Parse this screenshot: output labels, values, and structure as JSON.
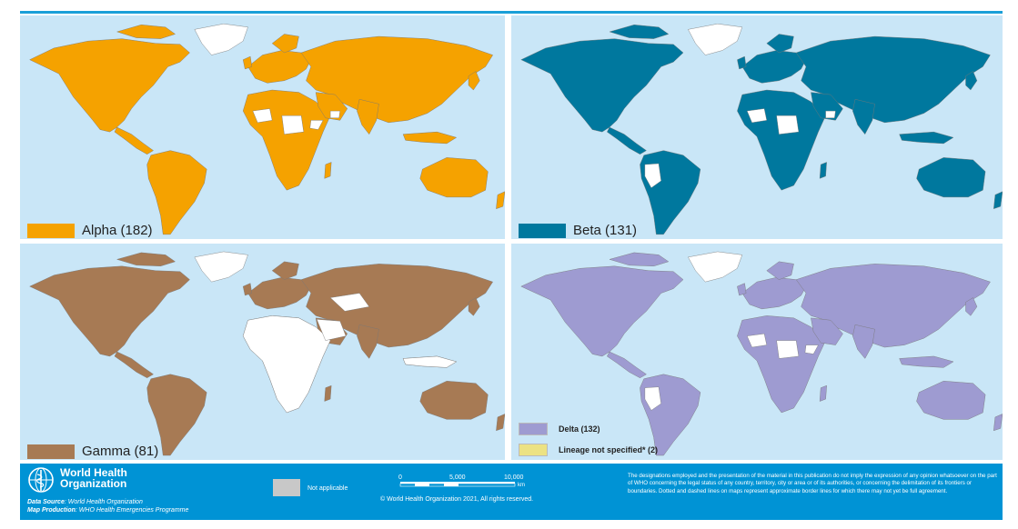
{
  "maps": [
    {
      "id": "alpha",
      "label": "Alpha (182)",
      "color": "#f5a200",
      "uncolored": [
        "west-africa",
        "central-africa",
        "horn",
        "arabia-south"
      ]
    },
    {
      "id": "beta",
      "label": "Beta (131)",
      "color": "#00789e",
      "uncolored": [
        "south-america-west",
        "west-africa",
        "central-africa",
        "arabia-south"
      ]
    },
    {
      "id": "gamma",
      "label": "Gamma (81)",
      "color": "#a77a54",
      "uncolored": [
        "africa",
        "arabia",
        "central-asia",
        "indonesia"
      ]
    },
    {
      "id": "delta",
      "colors": [
        "#9e9bd1",
        "#ece283"
      ],
      "uncolored": [
        "west-africa",
        "central-africa",
        "horn",
        "south-america-west"
      ]
    }
  ],
  "delta_legend": {
    "delta_label": "Delta (132)",
    "delta_color": "#9e9bd1",
    "lineage_label": "Lineage not specified* (2)",
    "lineage_color": "#ece283"
  },
  "footer": {
    "org_name_line1": "World Health",
    "org_name_line2": "Organization",
    "data_source_label": "Data Source",
    "data_source_value": ": World Health Organization",
    "map_production_label": "Map Production",
    "map_production_value": ": WHO Health Emergencies Programme",
    "not_applicable": "Not applicable",
    "not_applicable_color": "#c8c8c8",
    "scale_0": "0",
    "scale_5000": "5,000",
    "scale_10000": "10,000",
    "scale_unit": "km",
    "copyright": "© World Health Organization 2021, All rights reserved.",
    "disclaimer": "The designations employed and the presentation of the material in this publication do not imply the expression of any opinion whatsoever on the part of WHO concerning the legal status of any country, territory, city or area or of its authorities, or concerning the delimitation of its frontiers or boundaries. Dotted and dashed lines on maps represent approximate border lines for which there may not yet be full agreement."
  }
}
